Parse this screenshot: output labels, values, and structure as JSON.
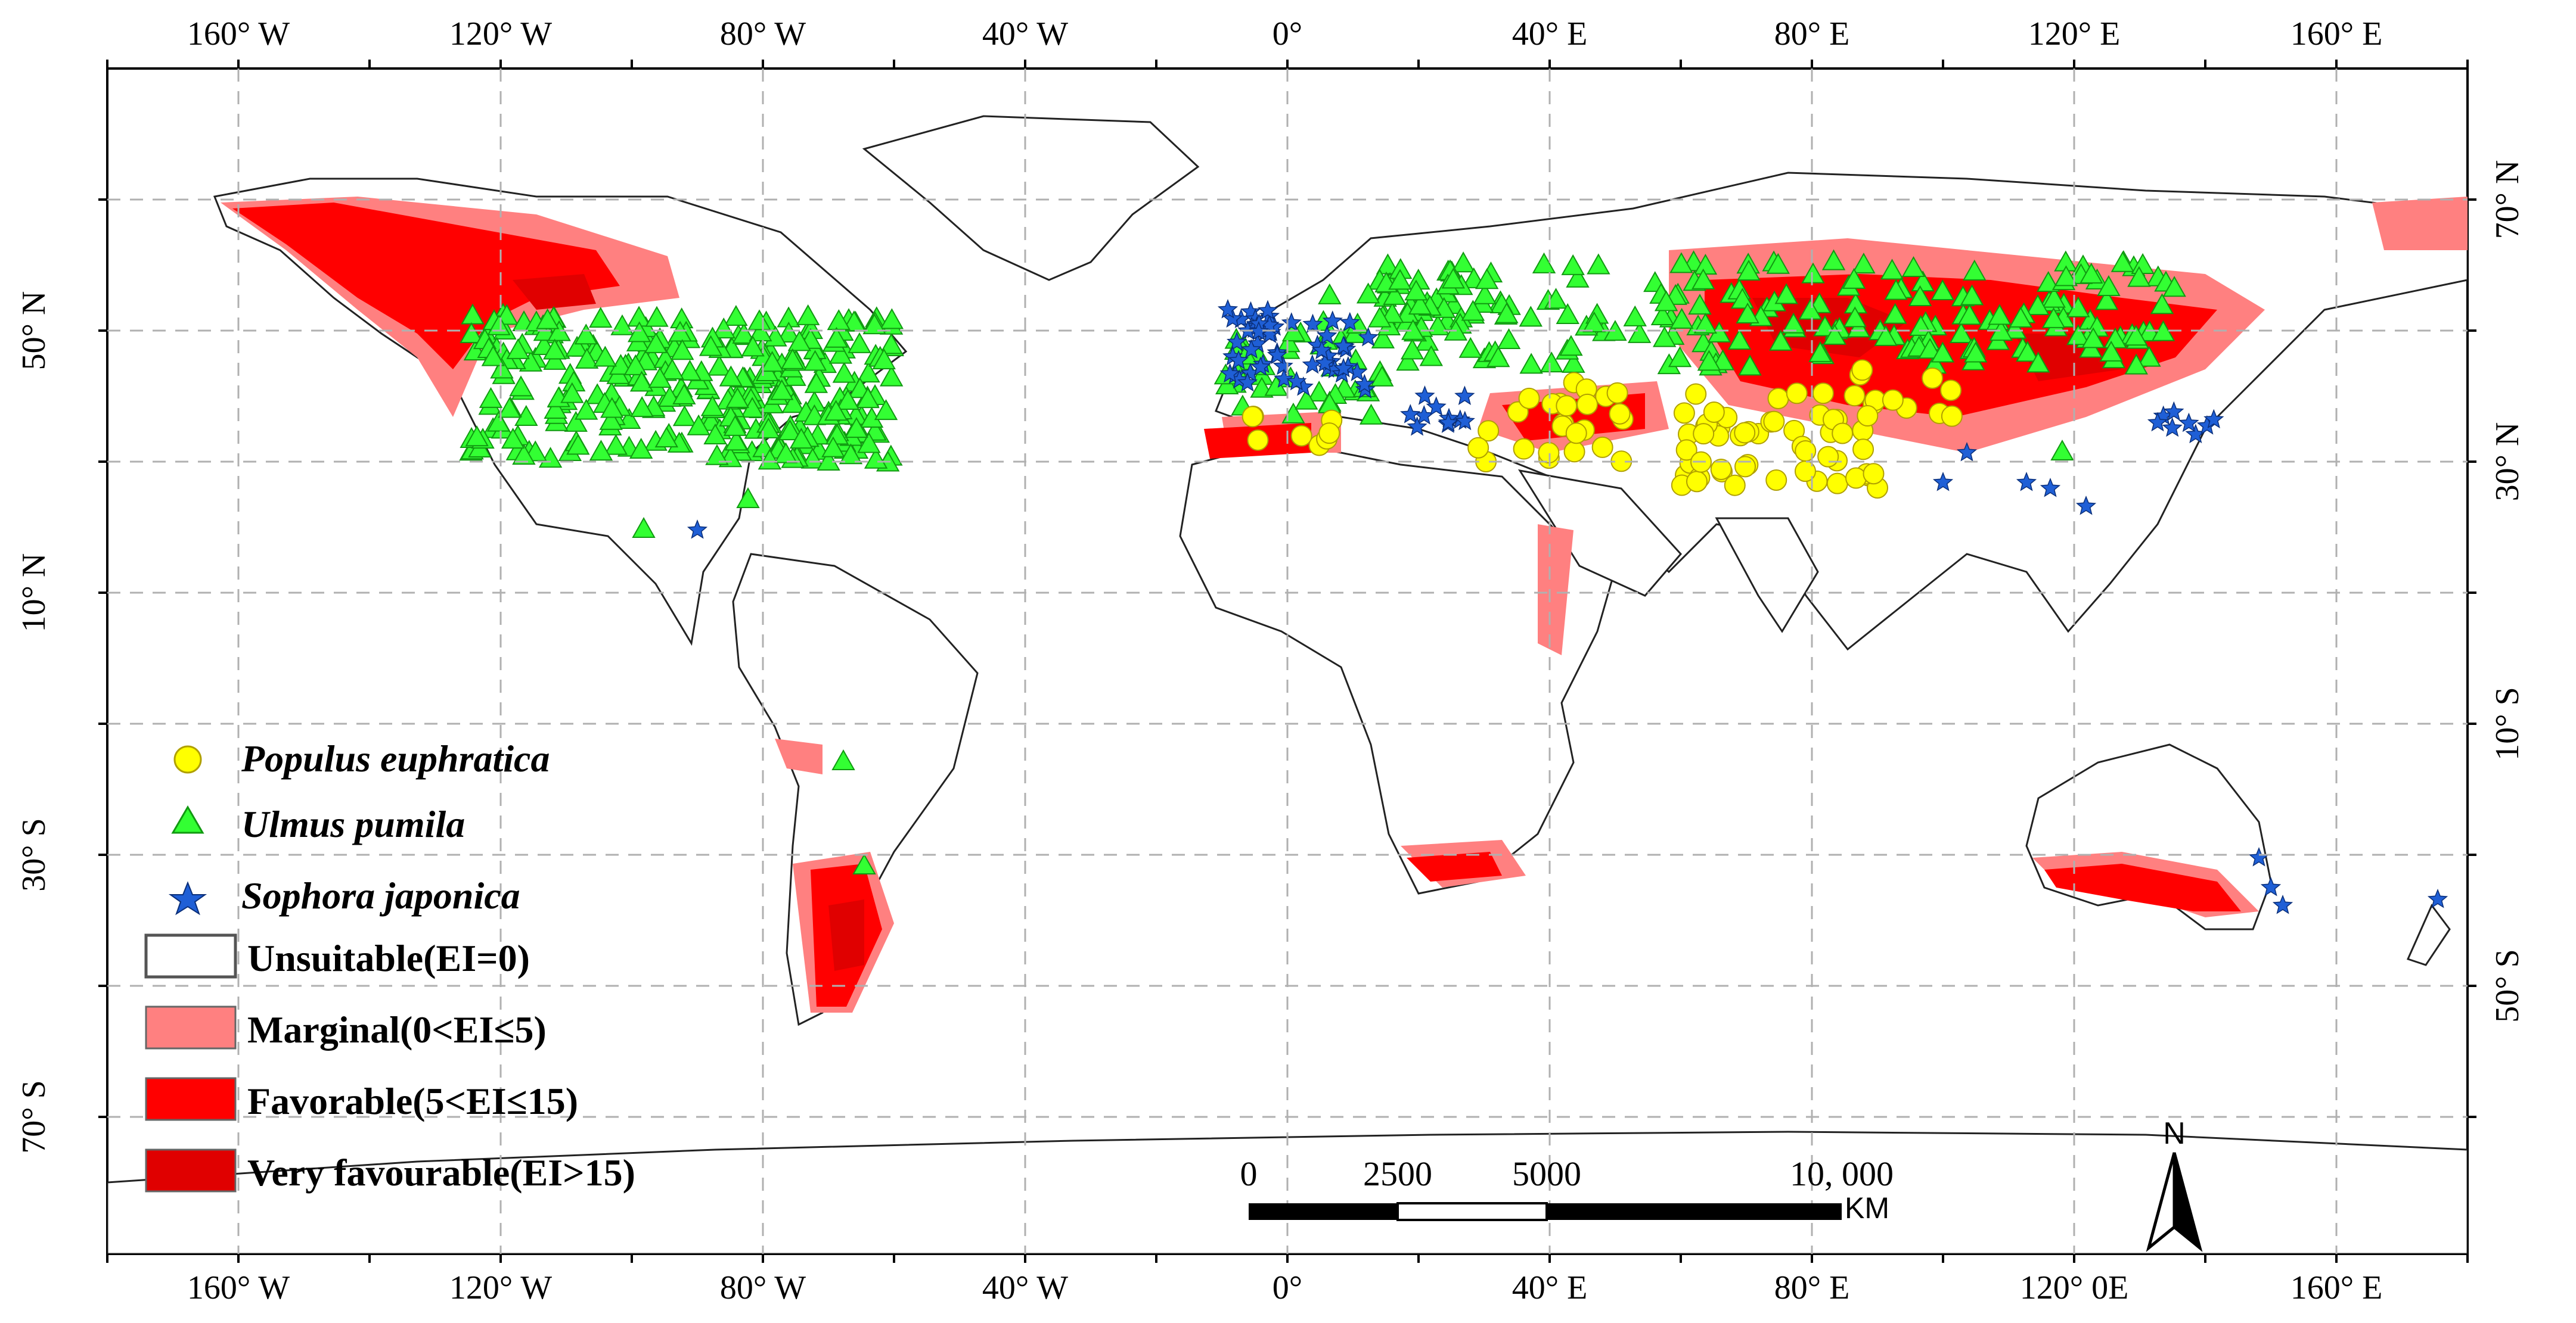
{
  "map": {
    "lon_labels_top": [
      "160° W",
      "120° W",
      "80° W",
      "40° W",
      "0°",
      "40° E",
      "80° E",
      "120° E",
      "160° E"
    ],
    "lon_labels_bottom": [
      "160° W",
      "120° W",
      "80° W",
      "40° W",
      "0°",
      "40° E",
      "80° E",
      "120° 0E",
      "160° E"
    ],
    "lat_labels_left": [
      "50° N",
      "10° N",
      "30° S",
      "70° S"
    ],
    "lat_labels_right": [
      "70° N",
      "30° N",
      "10° S",
      "50° S"
    ],
    "legend": {
      "species": [
        {
          "label": "Populus euphratica",
          "symbol": "circle",
          "color": "#ffff00"
        },
        {
          "label": "Ulmus pumila",
          "symbol": "triangle",
          "color": "#33ff33"
        },
        {
          "label": "Sophora japonica",
          "symbol": "star",
          "color": "#1f5fd6"
        }
      ],
      "classes": [
        {
          "label": "Unsuitable(EI=0)",
          "color": "#ffffff"
        },
        {
          "label": "Marginal(0<EI≤5)",
          "color": "#ff8080"
        },
        {
          "label": "Favorable(5<EI≤15)",
          "color": "#ff0000"
        },
        {
          "label": "Very favourable(EI>15)",
          "color": "#e00000"
        }
      ]
    },
    "scale_bar": {
      "labels": [
        "0",
        "2500",
        "5000",
        "10, 000"
      ],
      "unit": "KM"
    },
    "north_arrow": {
      "label": "N"
    }
  }
}
